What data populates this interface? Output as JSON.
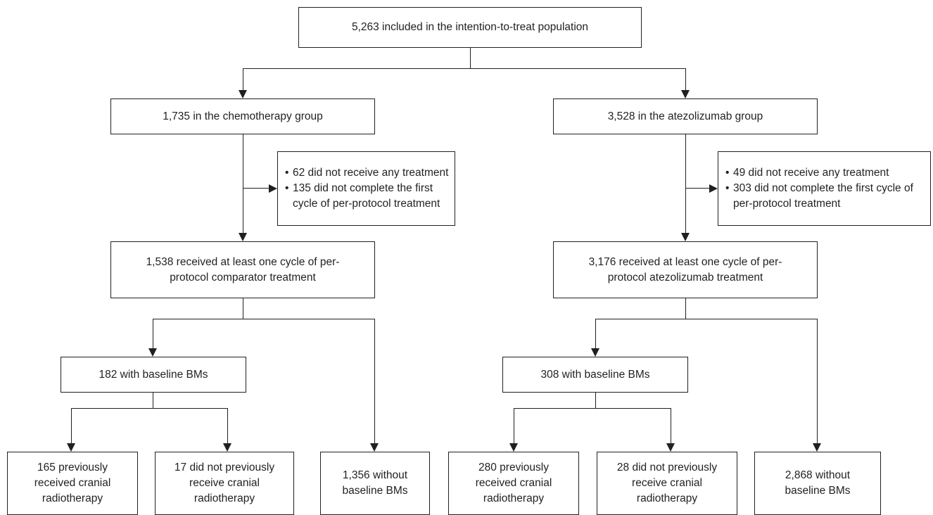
{
  "top": {
    "label": "5,263 included in the intention-to-treat population"
  },
  "chemo": {
    "group_label": "1,735 in the chemotherapy group",
    "exclusions": [
      "62 did not receive any treatment",
      "135 did not complete the first cycle of per-protocol treatment"
    ],
    "received_label": "1,538 received at least one cycle of per-protocol comparator treatment",
    "bms_label": "182 with baseline BMs",
    "without_label": "1,356 without baseline BMs",
    "prev_label": "165 previously received cranial radiotherapy",
    "notprev_label": "17 did not previously receive cranial radiotherapy"
  },
  "atezo": {
    "group_label": "3,528 in the atezolizumab group",
    "exclusions": [
      "49 did not receive any treatment",
      "303 did not complete the first cycle of per-protocol treatment"
    ],
    "received_label": "3,176 received at least one cycle of per-protocol atezolizumab treatment",
    "bms_label": "308 with baseline BMs",
    "without_label": "2,868 without baseline BMs",
    "prev_label": "280 previously received cranial radiotherapy",
    "notprev_label": "28 did not previously receive cranial radiotherapy"
  },
  "bullet": "•"
}
